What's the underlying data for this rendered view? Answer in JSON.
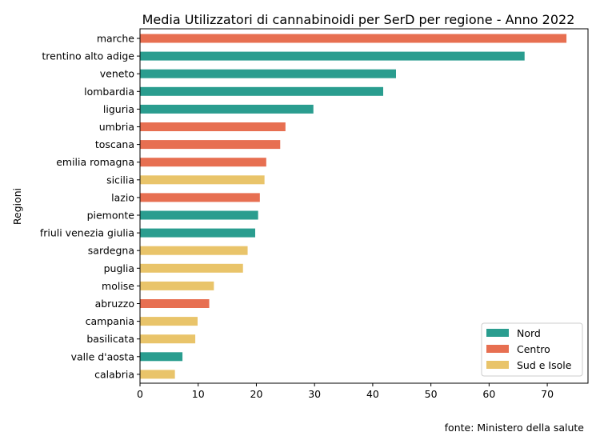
{
  "chart_data": {
    "type": "bar",
    "orientation": "horizontal",
    "title": "Media Utilizzatori di cannabinoidi per SerD per regione - Anno 2022",
    "xlabel": "",
    "ylabel": "Regioni",
    "xlim": [
      0,
      77
    ],
    "xticks": [
      0,
      10,
      20,
      30,
      40,
      50,
      60,
      70
    ],
    "legend_position": "bottom-right",
    "groups": [
      {
        "name": "Nord",
        "color": "#2a9d8f"
      },
      {
        "name": "Centro",
        "color": "#e76f51"
      },
      {
        "name": "Sud e Isole",
        "color": "#e9c46a"
      }
    ],
    "categories": [
      "marche",
      "trentino alto adige",
      "veneto",
      "lombardia",
      "liguria",
      "umbria",
      "toscana",
      "emilia romagna",
      "sicilia",
      "lazio",
      "piemonte",
      "friuli venezia giulia",
      "sardegna",
      "puglia",
      "molise",
      "abruzzo",
      "campania",
      "basilicata",
      "valle d'aosta",
      "calabria"
    ],
    "values": [
      73.3,
      66.1,
      44.0,
      41.8,
      29.8,
      25.0,
      24.1,
      21.7,
      21.4,
      20.6,
      20.3,
      19.8,
      18.5,
      17.7,
      12.7,
      11.9,
      9.9,
      9.5,
      7.3,
      6.0
    ],
    "group_of_category": [
      "Centro",
      "Nord",
      "Nord",
      "Nord",
      "Nord",
      "Centro",
      "Centro",
      "Centro",
      "Sud e Isole",
      "Centro",
      "Nord",
      "Nord",
      "Sud e Isole",
      "Sud e Isole",
      "Sud e Isole",
      "Centro",
      "Sud e Isole",
      "Sud e Isole",
      "Nord",
      "Sud e Isole"
    ]
  },
  "source": "fonte: Ministero della salute"
}
